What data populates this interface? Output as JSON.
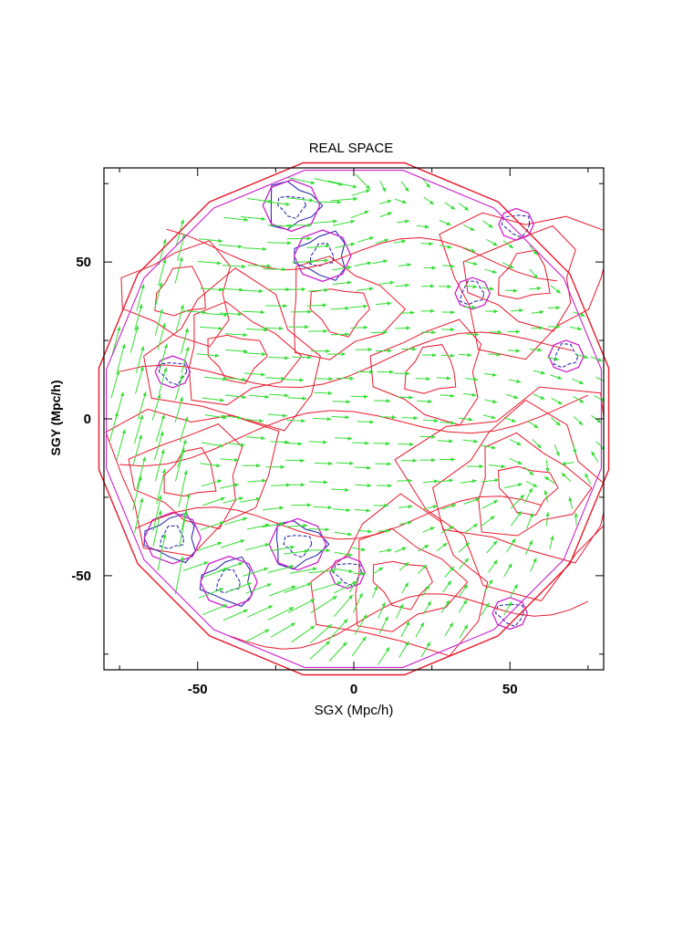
{
  "chart_data": {
    "type": "vector_field_contour",
    "title": "REAL SPACE",
    "xlabel": "SGX (Mpc/h)",
    "ylabel": "SGY (Mpc/h)",
    "xlim": [
      -80,
      80
    ],
    "ylim": [
      -80,
      80
    ],
    "x_ticks": [
      -50,
      0,
      50
    ],
    "y_ticks": [
      50,
      0,
      -50
    ],
    "survey_boundary_radius": 80,
    "colors": {
      "arrows": "#33dd33",
      "positive_contours": "#e8192c",
      "negative_contours": "#1a1aa8",
      "boundary": "#cc22cc",
      "axes": "#000000"
    },
    "contour_features": [
      {
        "sign": "positive",
        "x": 55,
        "y": -22,
        "levels": 4
      },
      {
        "sign": "positive",
        "x": -52,
        "y": -18,
        "levels": 3
      },
      {
        "sign": "positive",
        "x": -38,
        "y": 20,
        "levels": 3
      },
      {
        "sign": "positive",
        "x": 55,
        "y": 45,
        "levels": 3
      },
      {
        "sign": "positive",
        "x": 15,
        "y": -52,
        "levels": 3
      },
      {
        "sign": "positive",
        "x": 25,
        "y": 15,
        "levels": 2
      },
      {
        "sign": "positive",
        "x": -5,
        "y": 35,
        "levels": 2
      },
      {
        "sign": "positive",
        "x": -55,
        "y": 40,
        "levels": 2
      },
      {
        "sign": "negative",
        "x": -20,
        "y": 68,
        "levels": 2
      },
      {
        "sign": "negative",
        "x": -10,
        "y": 52,
        "levels": 2
      },
      {
        "sign": "negative",
        "x": -58,
        "y": 15,
        "levels": 1
      },
      {
        "sign": "negative",
        "x": -58,
        "y": -38,
        "levels": 2
      },
      {
        "sign": "negative",
        "x": -18,
        "y": -40,
        "levels": 2
      },
      {
        "sign": "negative",
        "x": -40,
        "y": -52,
        "levels": 2
      },
      {
        "sign": "negative",
        "x": -2,
        "y": -49,
        "levels": 1
      },
      {
        "sign": "negative",
        "x": 38,
        "y": 40,
        "levels": 1
      },
      {
        "sign": "negative",
        "x": 50,
        "y": -62,
        "levels": 1
      },
      {
        "sign": "negative",
        "x": 68,
        "y": 20,
        "levels": 1
      },
      {
        "sign": "negative",
        "x": 52,
        "y": 62,
        "levels": 1
      }
    ]
  }
}
